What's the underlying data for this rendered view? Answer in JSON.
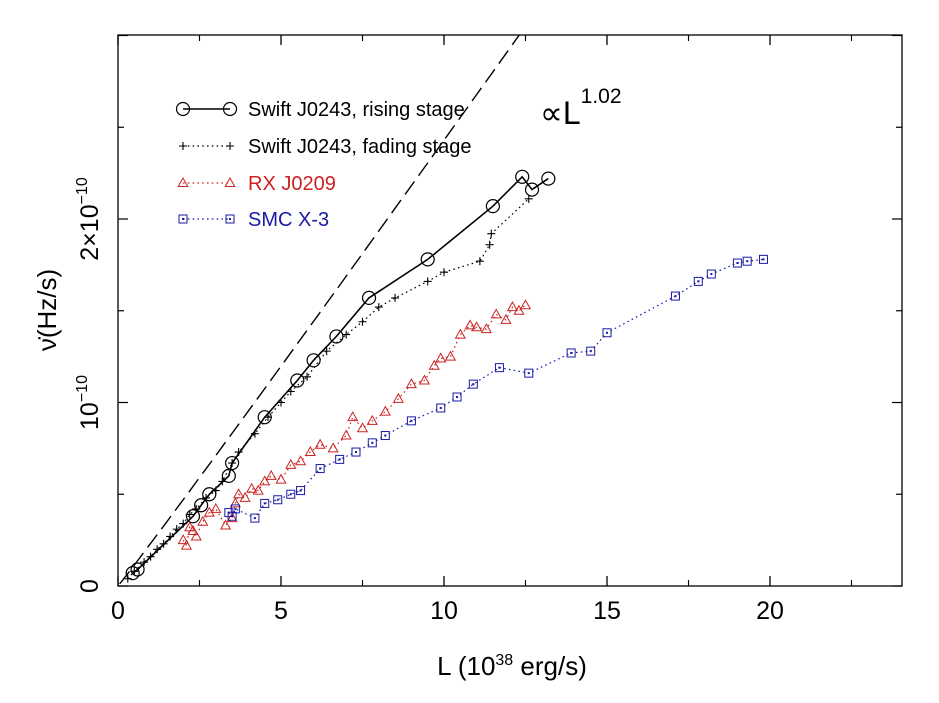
{
  "chart_data": {
    "type": "line",
    "title": "",
    "xlabel": {
      "prefix": "L (10",
      "sup": "38",
      "suffix": " erg/s)"
    },
    "ylabel": {
      "main": "ν̇(Hz/s)"
    },
    "xlim": [
      0,
      24
    ],
    "ylim": [
      0,
      3.0
    ],
    "y_unit": "1e-10 Hz/s",
    "x_ticks": [
      {
        "value": 0,
        "label": "0"
      },
      {
        "value": 5,
        "label": "5"
      },
      {
        "value": 10,
        "label": "10"
      },
      {
        "value": 15,
        "label": "15"
      },
      {
        "value": 20,
        "label": "20"
      }
    ],
    "y_ticks": [
      {
        "value": 0,
        "label": "0",
        "kind": "plain"
      },
      {
        "value": 1,
        "mant": "10",
        "exp": "−10",
        "kind": "pow"
      },
      {
        "value": 2,
        "mant": "2×10",
        "exp": "−10",
        "kind": "pow"
      }
    ],
    "grid": false,
    "legend_position": "top-left",
    "annotation": {
      "prefix": "∝L",
      "sup": "1.02"
    },
    "fit_line": {
      "label": "∝L^1.02",
      "coef": 0.232,
      "exponent": 1.02
    },
    "series": [
      {
        "name": "Swift J0243, rising stage",
        "color": "#000000",
        "marker": "circle",
        "line": "solid",
        "x": [
          0.45,
          0.6,
          2.3,
          2.55,
          2.8,
          3.4,
          3.5,
          4.5,
          5.5,
          6.0,
          6.7,
          7.7,
          9.5,
          11.5,
          12.4,
          12.7,
          13.2
        ],
        "y": [
          0.07,
          0.09,
          0.38,
          0.44,
          0.5,
          0.6,
          0.67,
          0.92,
          1.12,
          1.23,
          1.36,
          1.57,
          1.78,
          2.07,
          2.23,
          2.16,
          2.22
        ]
      },
      {
        "name": "Swift J0243, fading stage",
        "color": "#000000",
        "marker": "plus",
        "line": "dotted",
        "x": [
          0.3,
          0.5,
          0.8,
          1.0,
          1.2,
          1.4,
          1.6,
          1.8,
          2.0,
          2.2,
          2.4,
          2.7,
          3.0,
          3.2,
          3.5,
          3.7,
          4.2,
          4.6,
          5.0,
          5.3,
          5.8,
          6.4,
          7.0,
          7.5,
          8.0,
          8.5,
          9.5,
          10.0,
          11.1,
          11.4,
          11.45,
          12.6
        ],
        "y": [
          0.04,
          0.08,
          0.13,
          0.16,
          0.2,
          0.23,
          0.27,
          0.31,
          0.34,
          0.39,
          0.42,
          0.48,
          0.52,
          0.57,
          0.67,
          0.73,
          0.83,
          0.92,
          1.0,
          1.06,
          1.14,
          1.28,
          1.37,
          1.44,
          1.52,
          1.57,
          1.66,
          1.71,
          1.77,
          1.86,
          1.92,
          2.11
        ]
      },
      {
        "name": "RX J0209",
        "color": "#cc2222",
        "marker": "triangle",
        "line": "dotted",
        "x": [
          2.0,
          2.1,
          2.2,
          2.3,
          2.4,
          2.6,
          2.8,
          3.0,
          3.3,
          3.5,
          3.6,
          3.7,
          3.9,
          4.1,
          4.3,
          4.5,
          4.7,
          5.0,
          5.3,
          5.6,
          5.9,
          6.2,
          6.6,
          7.0,
          7.2,
          7.5,
          7.8,
          8.2,
          8.6,
          9.0,
          9.4,
          9.7,
          9.9,
          10.2,
          10.5,
          10.8,
          11.0,
          11.3,
          11.6,
          11.9,
          12.1,
          12.3,
          12.5
        ],
        "y": [
          0.25,
          0.22,
          0.32,
          0.3,
          0.27,
          0.35,
          0.4,
          0.42,
          0.33,
          0.37,
          0.45,
          0.5,
          0.48,
          0.53,
          0.52,
          0.57,
          0.6,
          0.58,
          0.66,
          0.68,
          0.73,
          0.77,
          0.75,
          0.82,
          0.92,
          0.86,
          0.9,
          0.95,
          1.02,
          1.1,
          1.12,
          1.2,
          1.24,
          1.25,
          1.37,
          1.42,
          1.41,
          1.4,
          1.48,
          1.45,
          1.52,
          1.5,
          1.53
        ]
      },
      {
        "name": "SMC X-3",
        "color": "#1a1aa6",
        "marker": "square",
        "line": "dotted",
        "x": [
          3.4,
          3.5,
          3.6,
          4.2,
          4.5,
          4.9,
          5.3,
          5.6,
          6.2,
          6.8,
          7.3,
          7.8,
          8.2,
          9.0,
          9.9,
          10.4,
          10.9,
          11.7,
          12.6,
          13.9,
          14.5,
          15.0,
          17.1,
          17.8,
          18.2,
          19.0,
          19.3,
          19.8
        ],
        "y": [
          0.4,
          0.38,
          0.42,
          0.37,
          0.45,
          0.47,
          0.5,
          0.52,
          0.64,
          0.69,
          0.73,
          0.78,
          0.82,
          0.9,
          0.97,
          1.03,
          1.1,
          1.19,
          1.16,
          1.27,
          1.28,
          1.38,
          1.58,
          1.66,
          1.7,
          1.76,
          1.77,
          1.78
        ]
      }
    ]
  }
}
